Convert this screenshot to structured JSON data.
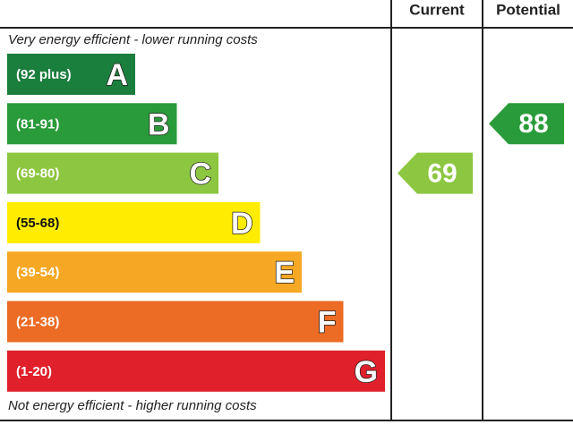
{
  "header": {
    "current": "Current",
    "potential": "Potential"
  },
  "top_note": "Very energy efficient - lower running costs",
  "bottom_note": "Not energy efficient - higher running costs",
  "bands": [
    {
      "range": "(92 plus)",
      "letter": "A",
      "color": "#1a7e3c"
    },
    {
      "range": "(81-91)",
      "letter": "B",
      "color": "#2a9b3a"
    },
    {
      "range": "(69-80)",
      "letter": "C",
      "color": "#8dc641"
    },
    {
      "range": "(55-68)",
      "letter": "D",
      "color": "#ffec00"
    },
    {
      "range": "(39-54)",
      "letter": "E",
      "color": "#f6a825"
    },
    {
      "range": "(21-38)",
      "letter": "F",
      "color": "#ec6b25"
    },
    {
      "range": "(1-20)",
      "letter": "G",
      "color": "#e0202a"
    }
  ],
  "current": 69,
  "potential": 88
}
